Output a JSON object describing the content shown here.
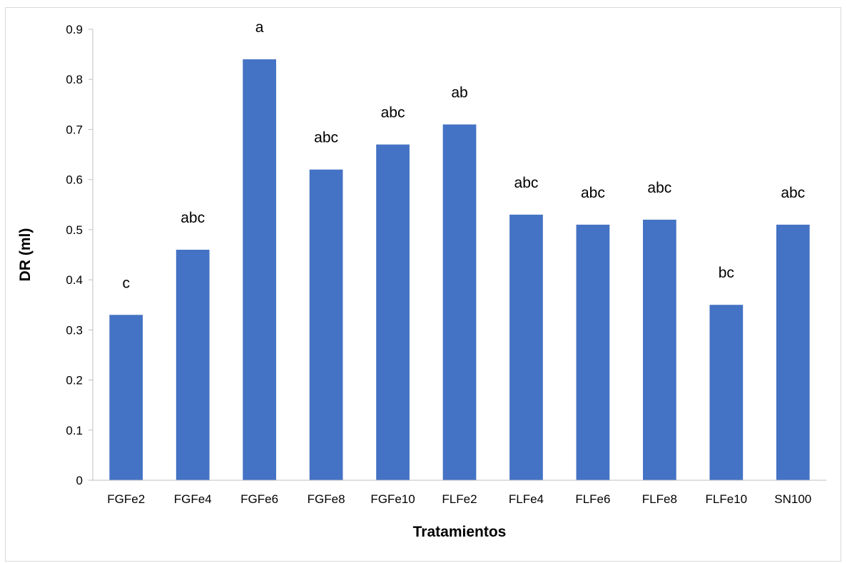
{
  "chart_data": {
    "type": "bar",
    "title": "",
    "xlabel": "Tratamientos",
    "ylabel": "DR (ml)",
    "categories": [
      "FGFe2",
      "FGFe4",
      "FGFe6",
      "FGFe8",
      "FGFe10",
      "FLFe2",
      "FLFe4",
      "FLFe6",
      "FLFe8",
      "FLFe10",
      "SN100"
    ],
    "values": [
      0.33,
      0.46,
      0.84,
      0.62,
      0.67,
      0.71,
      0.53,
      0.51,
      0.52,
      0.35,
      0.51
    ],
    "data_labels": [
      "c",
      "abc",
      "a",
      "abc",
      "abc",
      "ab",
      "abc",
      "abc",
      "abc",
      "bc",
      "abc"
    ],
    "ylim": [
      0,
      0.9
    ],
    "yticks": [
      0,
      0.1,
      0.2,
      0.3,
      0.4,
      0.5,
      0.6,
      0.7,
      0.8,
      0.9
    ],
    "ytick_labels": [
      "0",
      "0.1",
      "0.2",
      "0.3",
      "0.4",
      "0.5",
      "0.6",
      "0.7",
      "0.8",
      "0.9"
    ],
    "grid": false,
    "legend": "none",
    "bar_color": "#4472c4"
  }
}
